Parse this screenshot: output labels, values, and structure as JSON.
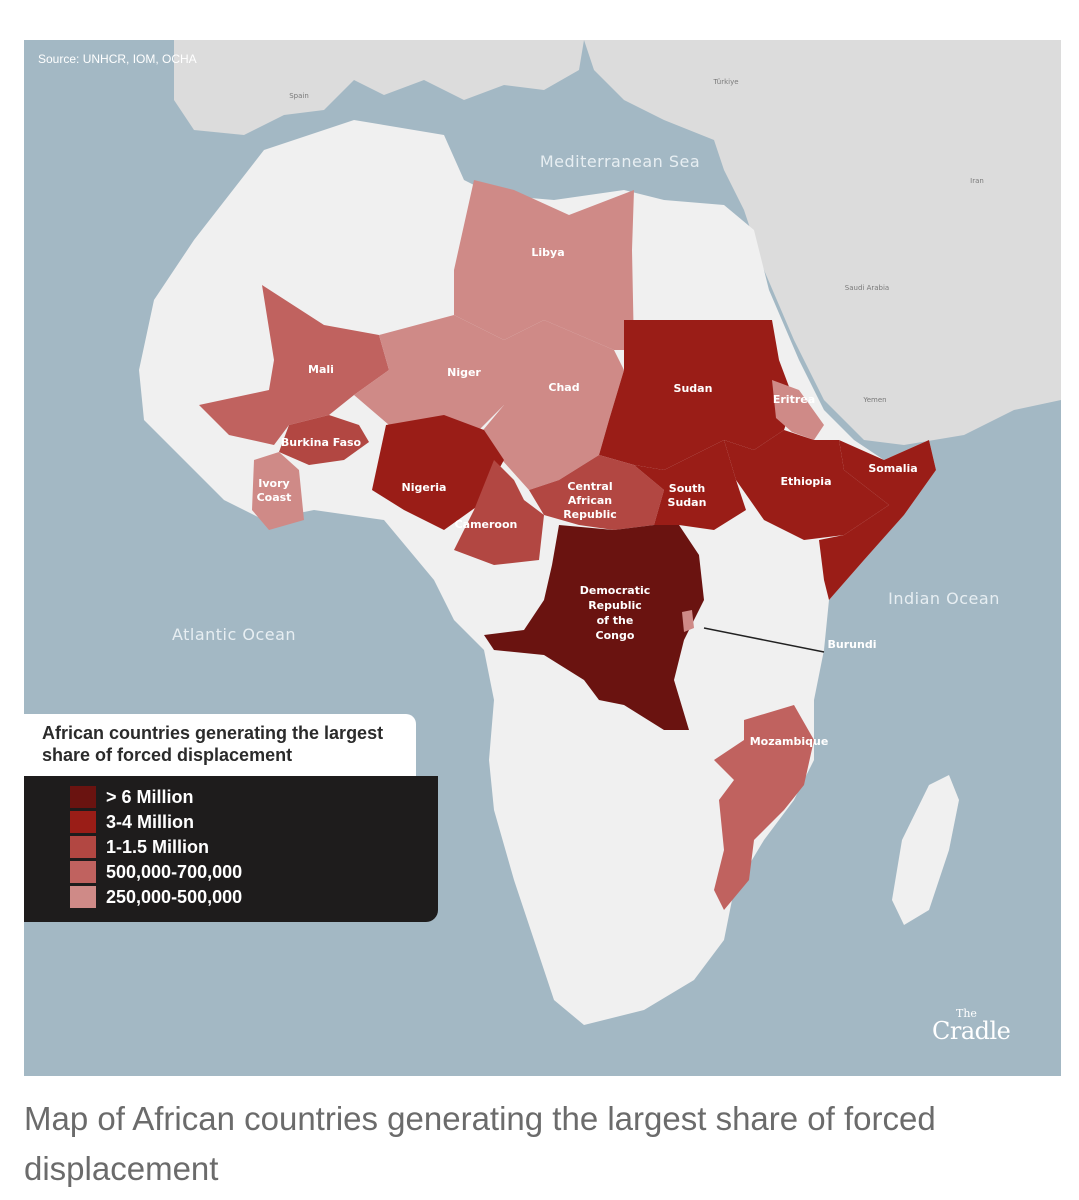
{
  "source": "Source: UNHCR, IOM, OCHA",
  "seas": {
    "mediterranean": "Mediterranean Sea",
    "atlantic": "Atlantic Ocean",
    "indian": "Indian Ocean"
  },
  "minor_labels": {
    "spain": "Spain",
    "turkiye": "Türkiye",
    "iran": "Iran",
    "saudi_arabia": "Saudi Arabia",
    "yemen": "Yemen"
  },
  "countries": {
    "libya": {
      "label": "Libya",
      "category": "250,000-500,000"
    },
    "mali": {
      "label": "Mali",
      "category": "500,000-700,000"
    },
    "niger": {
      "label": "Niger",
      "category": "250,000-500,000"
    },
    "chad": {
      "label": "Chad",
      "category": "250,000-500,000"
    },
    "sudan": {
      "label": "Sudan",
      "category": "3-4 Million"
    },
    "eritrea": {
      "label": "Eritrea",
      "category": "250,000-500,000"
    },
    "burkina_faso": {
      "label": "Burkina Faso",
      "category": "1-1.5 Million"
    },
    "ivory_coast": {
      "label_line1": "Ivory",
      "label_line2": "Coast",
      "category": "250,000-500,000"
    },
    "nigeria": {
      "label": "Nigeria",
      "category": "3-4 Million"
    },
    "cameroon": {
      "label": "Cameroon",
      "category": "1-1.5 Million"
    },
    "central_african_republic": {
      "label_line1": "Central",
      "label_line2": "African",
      "label_line3": "Republic",
      "category": "1-1.5 Million"
    },
    "south_sudan": {
      "label_line1": "South",
      "label_line2": "Sudan",
      "category": "3-4 Million"
    },
    "ethiopia": {
      "label": "Ethiopia",
      "category": "3-4 Million"
    },
    "somalia": {
      "label": "Somalia",
      "category": "3-4 Million"
    },
    "drc": {
      "label_line1": "Democratic",
      "label_line2": "Republic",
      "label_line3": "of the",
      "label_line4": "Congo",
      "category": "> 6 Million"
    },
    "burundi": {
      "label": "Burundi",
      "category": "250,000-500,000"
    },
    "mozambique": {
      "label": "Mozambique",
      "category": "500,000-700,000"
    }
  },
  "legend": {
    "title": "African countries generating the largest share of forced displacement",
    "items": [
      {
        "label": "> 6 Million",
        "color": "#6a1310"
      },
      {
        "label": "3-4 Million",
        "color": "#9a1d17"
      },
      {
        "label": "1-1.5 Million",
        "color": "#b24742"
      },
      {
        "label": "500,000-700,000",
        "color": "#c0625f"
      },
      {
        "label": "250,000-500,000",
        "color": "#cf8a87"
      }
    ]
  },
  "logo": {
    "the": "The",
    "name": "Cradle"
  },
  "caption": "Map of African countries generating the largest share of forced displacement",
  "colors": {
    "sea": "#a3b8c4",
    "land": "#f0f0f0",
    "neighbor_land": "#dcdcdc"
  }
}
